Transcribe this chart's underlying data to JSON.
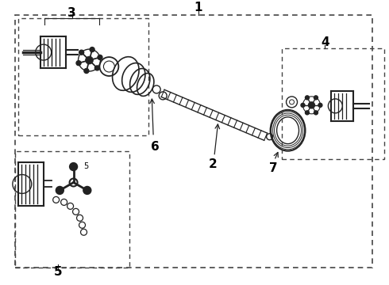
{
  "bg_color": "#ffffff",
  "line_color": "#222222",
  "part_color": "#222222",
  "border_color": "#444444",
  "text_color": "#000000",
  "fig_width": 4.9,
  "fig_height": 3.6,
  "dpi": 100
}
